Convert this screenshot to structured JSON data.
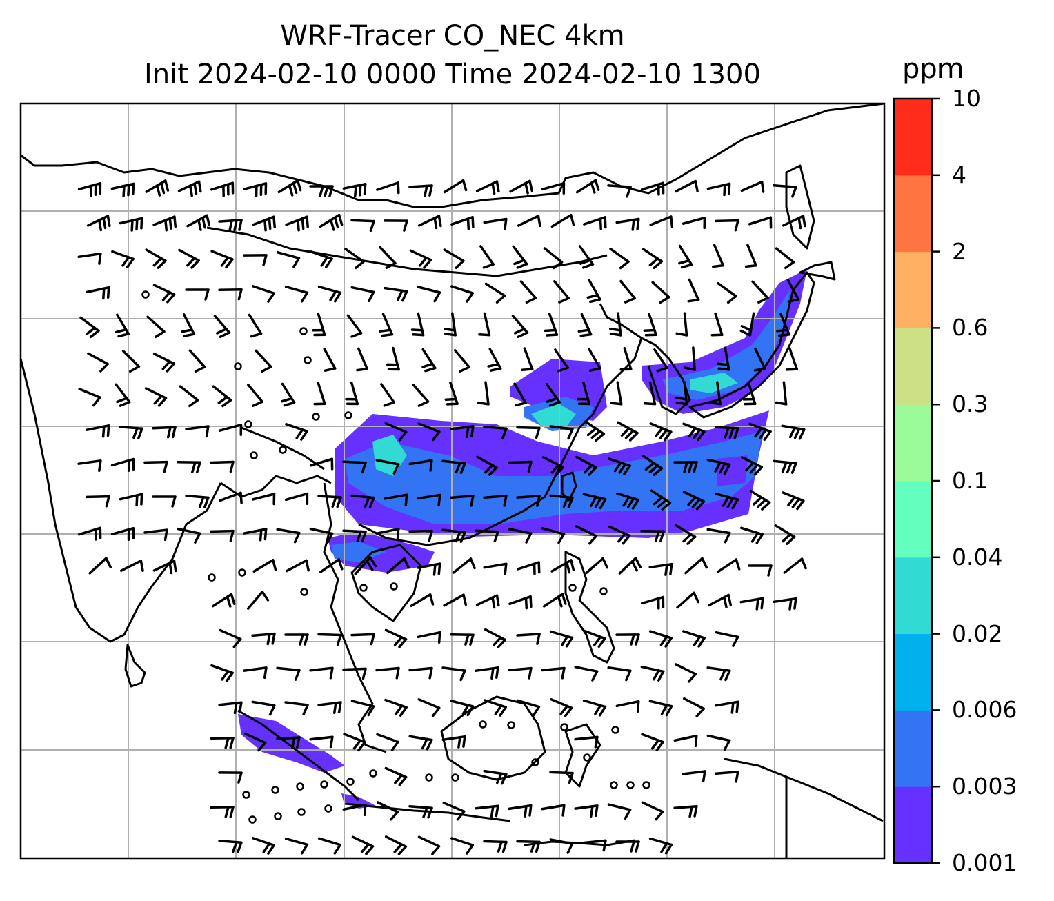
{
  "title": {
    "line1": "WRF-Tracer CO_NEC 4km",
    "line2": "Init 2024-02-10 0000 Time 2024-02-10 1300"
  },
  "colorbar": {
    "unit": "ppm",
    "ticks": [
      "0.001",
      "0.003",
      "0.006",
      "0.02",
      "0.04",
      "0.1",
      "0.3",
      "0.6",
      "2",
      "4",
      "10"
    ],
    "colors": [
      "#6630ff",
      "#3374f4",
      "#00b1ee",
      "#31dbd4",
      "#62ffbe",
      "#9cfb99",
      "#cce085",
      "#ffb062",
      "#ff7440",
      "#ff2c1b"
    ]
  },
  "map": {
    "gridlines": true,
    "coastline_color": "#000000",
    "wind_barb_color": "#000000",
    "plume_levels": [
      "0.001",
      "0.003",
      "0.006",
      "0.02",
      "0.04"
    ]
  }
}
